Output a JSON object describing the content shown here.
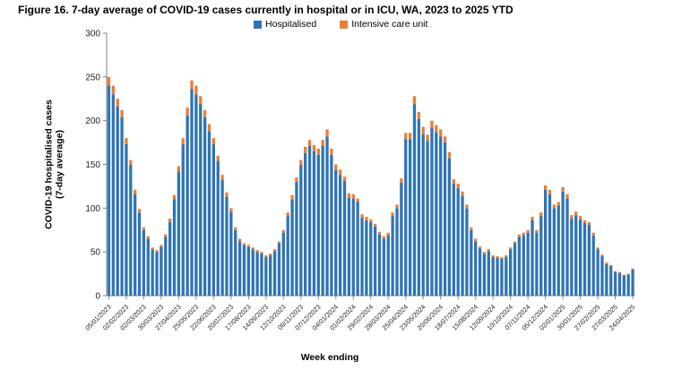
{
  "figure": {
    "title": "Figure 16. 7-day average of COVID-19 cases currently in hospital or in ICU, WA, 2023 to 2025 YTD"
  },
  "chart_data": {
    "type": "bar",
    "stacked": true,
    "title": "Figure 16. 7-day average of COVID-19 cases currently in hospital or in ICU, WA, 2023 to 2025 YTD",
    "xlabel": "Week ending",
    "ylabel_line1": "COVID-19 hospitalised cases",
    "ylabel_line2": "(7-day average)",
    "ylim": [
      0,
      300
    ],
    "yticks": [
      0,
      50,
      100,
      150,
      200,
      250,
      300
    ],
    "grid": false,
    "legend_position": "top-center",
    "x_tick_every": 4,
    "x_tick_labels": [
      "05/01/2023",
      "02/02/2023",
      "02/03/2023",
      "30/03/2023",
      "27/04/2023",
      "25/05/2023",
      "22/06/2023",
      "20/07/2023",
      "17/08/2023",
      "14/09/2023",
      "12/10/2023",
      "09/11/2023",
      "07/12/2023",
      "04/01/2024",
      "01/02/2024",
      "29/02/2024",
      "28/03/2024",
      "25/04/2024",
      "23/05/2024",
      "20/06/2024",
      "18/07/2024",
      "15/08/2024",
      "12/09/2024",
      "10/10/2024",
      "07/11/2024",
      "05/12/2024",
      "02/01/2025",
      "30/01/2025",
      "27/02/2025",
      "27/03/2025",
      "24/04/2025"
    ],
    "series": [
      {
        "name": "Hospitalised",
        "color": "#2E74B5",
        "values": [
          240,
          230,
          216,
          204,
          173,
          149,
          116,
          95,
          75,
          65,
          53,
          50,
          56,
          67,
          84,
          110,
          142,
          173,
          206,
          236,
          230,
          219,
          204,
          188,
          173,
          154,
          132,
          113,
          96,
          75,
          62,
          58,
          56,
          53,
          50,
          48,
          44,
          46,
          51,
          60,
          72,
          91,
          110,
          130,
          149,
          163,
          171,
          165,
          161,
          171,
          182,
          161,
          144,
          138,
          131,
          112,
          111,
          107,
          89,
          86,
          84,
          79,
          70,
          65,
          69,
          91,
          100,
          129,
          179,
          179,
          219,
          202,
          185,
          177,
          192,
          187,
          182,
          175,
          157,
          128,
          123,
          114,
          100,
          75,
          62,
          54,
          48,
          51,
          44,
          43,
          42,
          44,
          53,
          60,
          67,
          69,
          72,
          86,
          72,
          91,
          121,
          116,
          100,
          103,
          119,
          111,
          88,
          92,
          87,
          83,
          81,
          69,
          53,
          45,
          36,
          34,
          27,
          26,
          23,
          24,
          30
        ]
      },
      {
        "name": "Intensive care unit",
        "color": "#ED7D31",
        "values": [
          10,
          10,
          9,
          8,
          7,
          6,
          5,
          4,
          3,
          3,
          2,
          2,
          2,
          3,
          4,
          5,
          6,
          7,
          9,
          10,
          10,
          9,
          8,
          8,
          7,
          6,
          6,
          5,
          4,
          3,
          3,
          2,
          2,
          2,
          2,
          2,
          2,
          2,
          2,
          2,
          3,
          4,
          5,
          5,
          6,
          7,
          7,
          7,
          7,
          7,
          8,
          7,
          6,
          6,
          5,
          5,
          5,
          4,
          4,
          4,
          3,
          3,
          3,
          3,
          3,
          4,
          4,
          5,
          7,
          7,
          9,
          8,
          8,
          7,
          8,
          8,
          8,
          7,
          7,
          5,
          5,
          5,
          4,
          3,
          3,
          2,
          2,
          2,
          2,
          2,
          2,
          2,
          2,
          2,
          3,
          3,
          3,
          4,
          3,
          4,
          5,
          5,
          4,
          4,
          5,
          5,
          4,
          4,
          4,
          3,
          3,
          3,
          2,
          2,
          2,
          1,
          1,
          1,
          1,
          1,
          1
        ]
      }
    ]
  },
  "axis": {
    "line_color": "#808080",
    "tick_label_color": "#262626"
  }
}
